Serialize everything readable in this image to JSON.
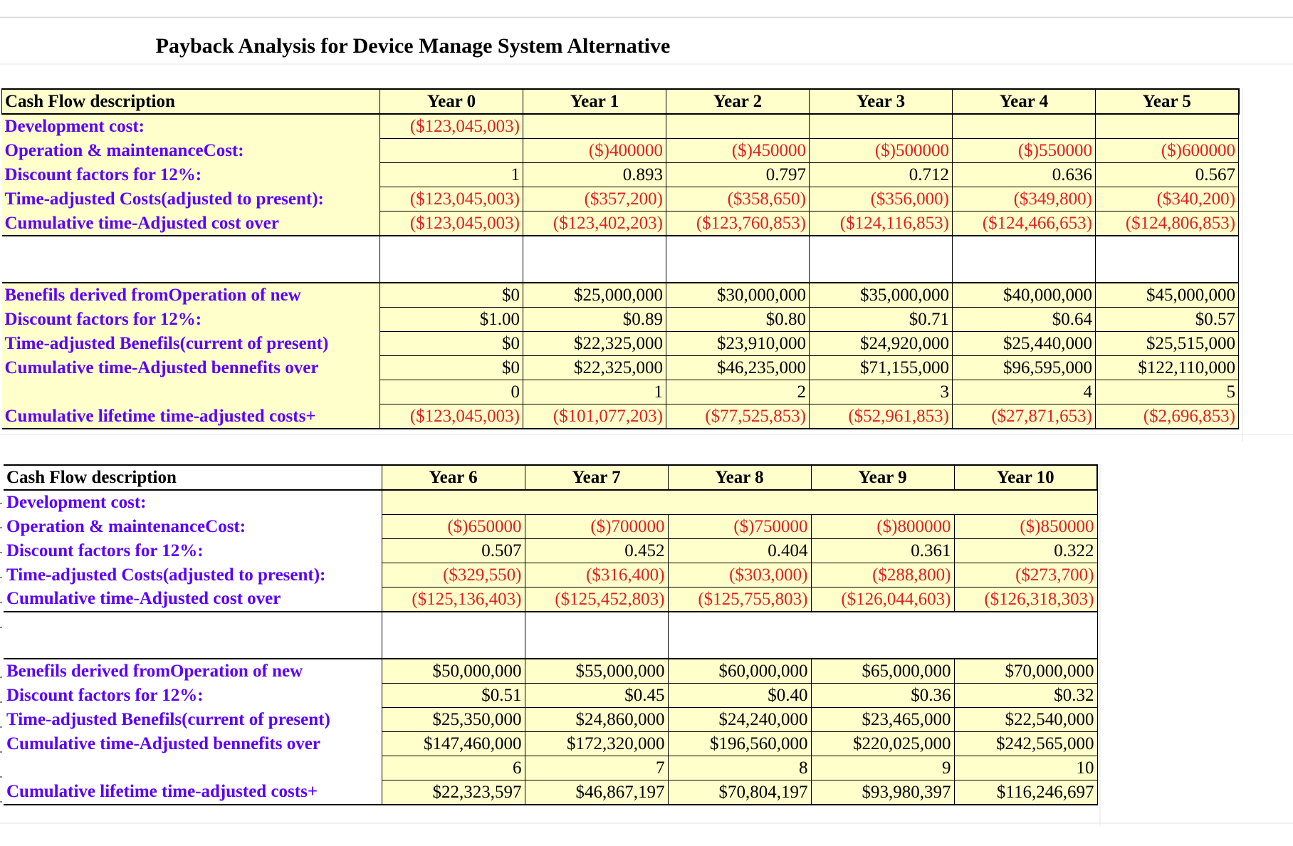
{
  "title": "Payback Analysis for Device Manage System Alternative",
  "colors": {
    "header_fill": "#ffffcc",
    "label_color": "#5a00ff",
    "negative_color": "#e02020"
  },
  "table1": {
    "header": {
      "desc": "Cash Flow description",
      "years": [
        "Year 0",
        "Year 1",
        "Year 2",
        "Year 3",
        "Year 4",
        "Year 5"
      ]
    },
    "rows": [
      {
        "label": "Development cost:",
        "values": [
          "($123,045,003)",
          "",
          "",
          "",
          "",
          ""
        ]
      },
      {
        "label": "Operation & maintenanceCost:",
        "values": [
          "",
          "($)400000",
          "($)450000",
          "($)500000",
          "($)550000",
          "($)600000"
        ]
      },
      {
        "label": "Discount factors for 12%:",
        "values": [
          "1",
          "0.893",
          "0.797",
          "0.712",
          "0.636",
          "0.567"
        ]
      },
      {
        "label": "Time-adjusted Costs(adjusted to present):",
        "values": [
          "($123,045,003)",
          "($357,200)",
          "($358,650)",
          "($356,000)",
          "($349,800)",
          "($340,200)"
        ]
      },
      {
        "label": "Cumulative time-Adjusted cost over",
        "values": [
          "($123,045,003)",
          "($123,402,203)",
          "($123,760,853)",
          "($124,116,853)",
          "($124,466,653)",
          "($124,806,853)"
        ]
      },
      {
        "label": "",
        "values": [
          "",
          "",
          "",
          "",
          "",
          ""
        ]
      },
      {
        "label": "Benefils derived fromOperation of new",
        "values": [
          "$0",
          "$25,000,000",
          "$30,000,000",
          "$35,000,000",
          "$40,000,000",
          "$45,000,000"
        ]
      },
      {
        "label": "Discount factors for 12%:",
        "values": [
          "$1.00",
          "$0.89",
          "$0.80",
          "$0.71",
          "$0.64",
          "$0.57"
        ]
      },
      {
        "label": "Time-adjusted Benefils(current of present)",
        "values": [
          "$0",
          "$22,325,000",
          "$23,910,000",
          "$24,920,000",
          "$25,440,000",
          "$25,515,000"
        ]
      },
      {
        "label": "Cumulative time-Adjusted bennefits over",
        "values": [
          "$0",
          "$22,325,000",
          "$46,235,000",
          "$71,155,000",
          "$96,595,000",
          "$122,110,000"
        ]
      },
      {
        "label": "",
        "values": [
          "0",
          "1",
          "2",
          "3",
          "4",
          "5"
        ]
      },
      {
        "label": "Cumulative lifetime time-adjusted costs+",
        "values": [
          "($123,045,003)",
          "($101,077,203)",
          "($77,525,853)",
          "($52,961,853)",
          "($27,871,653)",
          "($2,696,853)"
        ]
      }
    ]
  },
  "table2": {
    "header": {
      "desc": "Cash Flow description",
      "years": [
        "Year 6",
        "Year 7",
        "Year 8",
        "Year 9",
        "Year 10"
      ]
    },
    "rows": [
      {
        "label": "Development cost:",
        "values": [
          "",
          "",
          "",
          "",
          ""
        ]
      },
      {
        "label": "Operation & maintenanceCost:",
        "values": [
          "($)650000",
          "($)700000",
          "($)750000",
          "($)800000",
          "($)850000"
        ]
      },
      {
        "label": "Discount factors for 12%:",
        "values": [
          "0.507",
          "0.452",
          "0.404",
          "0.361",
          "0.322"
        ]
      },
      {
        "label": "Time-adjusted Costs(adjusted to present):",
        "values": [
          "($329,550)",
          "($316,400)",
          "($303,000)",
          "($288,800)",
          "($273,700)"
        ]
      },
      {
        "label": "Cumulative time-Adjusted cost over",
        "values": [
          "($125,136,403)",
          "($125,452,803)",
          "($125,755,803)",
          "($126,044,603)",
          "($126,318,303)"
        ]
      },
      {
        "label": "",
        "values": [
          "",
          "",
          "",
          "",
          ""
        ]
      },
      {
        "label": "Benefils derived fromOperation of new",
        "values": [
          "$50,000,000",
          "$55,000,000",
          "$60,000,000",
          "$65,000,000",
          "$70,000,000"
        ]
      },
      {
        "label": "Discount factors for 12%:",
        "values": [
          "$0.51",
          "$0.45",
          "$0.40",
          "$0.36",
          "$0.32"
        ]
      },
      {
        "label": "Time-adjusted Benefils(current of present)",
        "values": [
          "$25,350,000",
          "$24,860,000",
          "$24,240,000",
          "$23,465,000",
          "$22,540,000"
        ]
      },
      {
        "label": "Cumulative time-Adjusted bennefits over",
        "values": [
          "$147,460,000",
          "$172,320,000",
          "$196,560,000",
          "$220,025,000",
          "$242,565,000"
        ]
      },
      {
        "label": "",
        "values": [
          "6",
          "7",
          "8",
          "9",
          "10"
        ]
      },
      {
        "label": "Cumulative lifetime time-adjusted costs+",
        "values": [
          "$22,323,597",
          "$46,867,197",
          "$70,804,197",
          "$93,980,397",
          "$116,246,697"
        ]
      }
    ]
  }
}
